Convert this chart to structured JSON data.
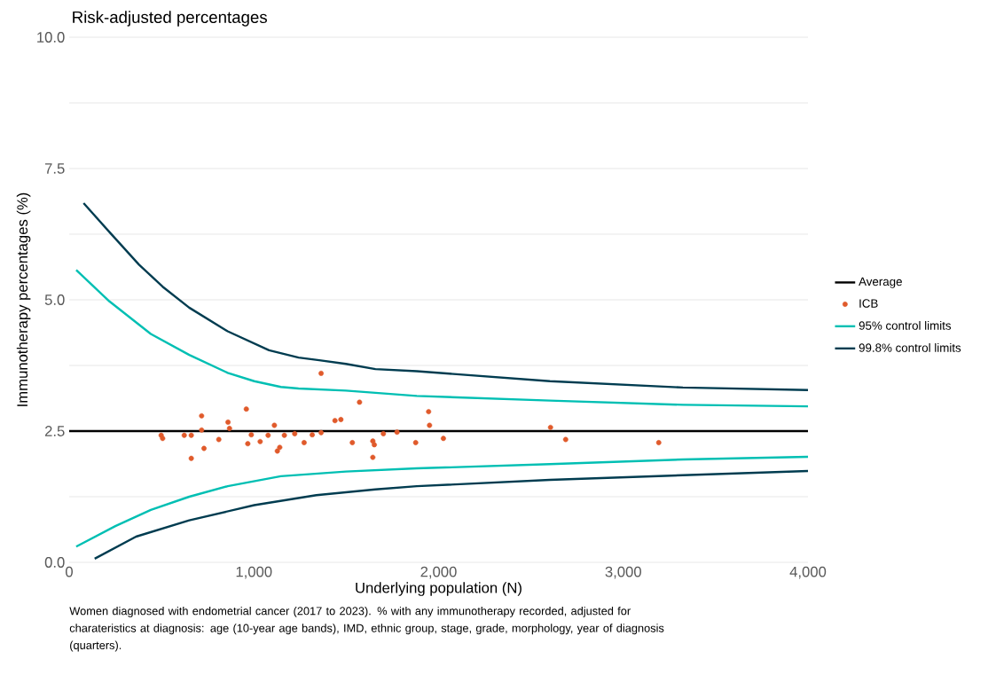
{
  "chart_data": {
    "type": "line",
    "title": "Risk-adjusted percentages",
    "xlabel": "Underlying population (N)",
    "ylabel": "Immunotherapy percentages (%)",
    "annotations": [
      "Women diagnosed with endometrial cancer (2017 to 2023). % with any immunotherapy recorded, adjusted for charateristics at diagnosis: age (10-year age bands), IMD, ethnic group, stage, grade, morphology, year of diagnosis (quarters)."
    ],
    "xlim": [
      0,
      4000
    ],
    "ylim": [
      0,
      10
    ],
    "xticks": [
      0,
      {
        "value": 1000,
        "label": "1,000"
      },
      {
        "value": 2000,
        "label": "2,000"
      },
      {
        "value": 3000,
        "label": "3,000"
      },
      {
        "value": 4000,
        "label": "4,000"
      }
    ],
    "yticks": [
      {
        "value": 0,
        "label": "0.0"
      },
      {
        "value": 1.25,
        "label": null
      },
      2.5,
      {
        "value": 3.75,
        "label": null
      },
      {
        "value": 5,
        "label": "5.0"
      },
      {
        "value": 6.25,
        "label": null
      },
      7.5,
      {
        "value": 8.75,
        "label": null
      },
      {
        "value": 10,
        "label": "10.0"
      }
    ],
    "grid": "y",
    "legend": "right",
    "series": [
      {
        "name": "Average",
        "color": "#000000",
        "x": [
          0,
          4000
        ],
        "values": [
          2.5,
          2.5
        ]
      },
      {
        "name": "ICB",
        "type": "scatter",
        "marker": "circle",
        "color": "#e05a2b",
        "x": [
          498,
          506,
          623,
          661,
          661,
          717,
          717,
          730,
          810,
          860,
          868,
          959,
          967,
          986,
          1034,
          1077,
          1111,
          1127,
          1140,
          1165,
          1221,
          1264,
          1272,
          1316,
          1364,
          1364,
          1439,
          1471,
          1533,
          1572,
          1644,
          1652,
          1644,
          1701,
          1775,
          1876,
          1946,
          1951,
          2026,
          2606,
          2688,
          3192
        ],
        "values": [
          2.42,
          2.36,
          2.42,
          2.42,
          1.98,
          2.79,
          2.52,
          2.17,
          2.34,
          2.67,
          2.55,
          2.92,
          2.26,
          2.43,
          2.3,
          2.42,
          2.61,
          2.12,
          2.19,
          2.42,
          2.45,
          null,
          2.28,
          2.43,
          2.47,
          3.6,
          2.7,
          2.72,
          2.28,
          3.05,
          2.31,
          2.24,
          2.0,
          2.45,
          2.48,
          2.28,
          2.87,
          2.61,
          2.36,
          2.57,
          2.34,
          2.28
        ]
      },
      {
        "name": "95% control limits",
        "color": "#00bfb3",
        "x": [
          38,
          218,
          442,
          650,
          858,
          1002,
          1146,
          1242,
          1498,
          1882,
          2603,
          3323,
          4000
        ],
        "values": [
          5.57,
          4.97,
          4.35,
          3.95,
          3.61,
          3.45,
          3.34,
          3.31,
          3.27,
          3.17,
          3.08,
          3.0,
          2.97
        ]
      },
      {
        "color": "#00bfb3",
        "x": [
          38,
          250,
          442,
          650,
          858,
          1146,
          1498,
          1882,
          2603,
          3323,
          4000
        ],
        "values": [
          0.3,
          0.69,
          1.0,
          1.25,
          1.45,
          1.64,
          1.73,
          1.79,
          1.87,
          1.96,
          2.01
        ]
      },
      {
        "name": "99.8% control limits",
        "color": "#003c50",
        "x": [
          78,
          218,
          378,
          506,
          650,
          858,
          1082,
          1242,
          1354,
          1498,
          1658,
          1882,
          2603,
          3323,
          4000
        ],
        "values": [
          6.84,
          6.29,
          5.67,
          5.25,
          4.85,
          4.4,
          4.04,
          3.9,
          3.85,
          3.78,
          3.68,
          3.64,
          3.45,
          3.33,
          3.28
        ]
      },
      {
        "color": "#003c50",
        "x": [
          138,
          362,
          650,
          1002,
          1338,
          1658,
          1882,
          2603,
          3323,
          4000
        ],
        "values": [
          0.07,
          0.49,
          0.8,
          1.09,
          1.28,
          1.39,
          1.45,
          1.57,
          1.66,
          1.74
        ]
      }
    ]
  }
}
